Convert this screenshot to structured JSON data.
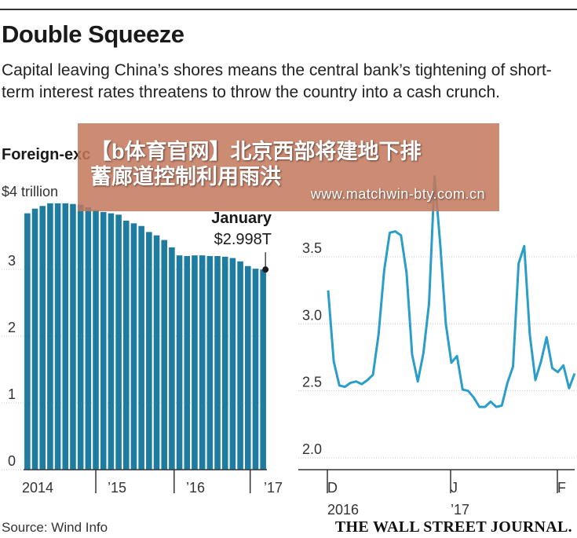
{
  "header": {
    "title": "Double Squeeze",
    "subtitle": "Capital leaving China’s shores means the central bank’s tightening of short-term interest rates threatens to throw the country into a cash crunch."
  },
  "chart_data": [
    {
      "type": "bar",
      "title": "Foreign-exc",
      "unit_label": "$4 trillion",
      "ylim": [
        0,
        4
      ],
      "yticks": [
        0,
        1,
        2,
        3
      ],
      "x_tick_labels": [
        "2014",
        "’15",
        "’16",
        "’17"
      ],
      "values": [
        3.84,
        3.91,
        3.95,
        3.99,
        3.99,
        3.99,
        3.98,
        3.97,
        3.93,
        3.89,
        3.86,
        3.84,
        3.82,
        3.73,
        3.69,
        3.65,
        3.56,
        3.51,
        3.44,
        3.33,
        3.21,
        3.2,
        3.21,
        3.21,
        3.2,
        3.2,
        3.19,
        3.17,
        3.12,
        3.05,
        3.01,
        2.998
      ],
      "color": "#1e7ca0",
      "annotation": {
        "label": "January",
        "value": "$2.998T"
      }
    },
    {
      "type": "line",
      "ylim": [
        2.0,
        4.0
      ],
      "yticks": [
        "2.0",
        "2.5",
        "3.0",
        "3.5"
      ],
      "x_tick_labels": [
        "D",
        "J",
        "F"
      ],
      "x_year_labels": [
        "2016",
        "’17"
      ],
      "values": [
        3.25,
        2.72,
        2.54,
        2.53,
        2.56,
        2.57,
        2.55,
        2.58,
        2.62,
        2.92,
        3.4,
        3.68,
        3.69,
        3.66,
        3.38,
        2.77,
        2.57,
        2.78,
        3.15,
        4.1,
        3.6,
        3.0,
        2.71,
        2.76,
        2.51,
        2.5,
        2.45,
        2.38,
        2.38,
        2.42,
        2.38,
        2.39,
        2.56,
        2.68,
        3.45,
        3.58,
        2.92,
        2.58,
        2.72,
        2.9,
        2.67,
        2.64,
        2.69,
        2.52,
        2.63
      ],
      "color": "#2a9ec7"
    }
  ],
  "footer": {
    "source": "Source: Wind Info",
    "brand": "THE WALL STREET JOURNAL."
  },
  "watermark": {
    "line1": "【b体育官网】北京西部将建地下排",
    "line2": "蓄廊道控制利用雨洪",
    "url": "www.matchwin-bty.com.cn",
    "color": "#c4785c"
  }
}
